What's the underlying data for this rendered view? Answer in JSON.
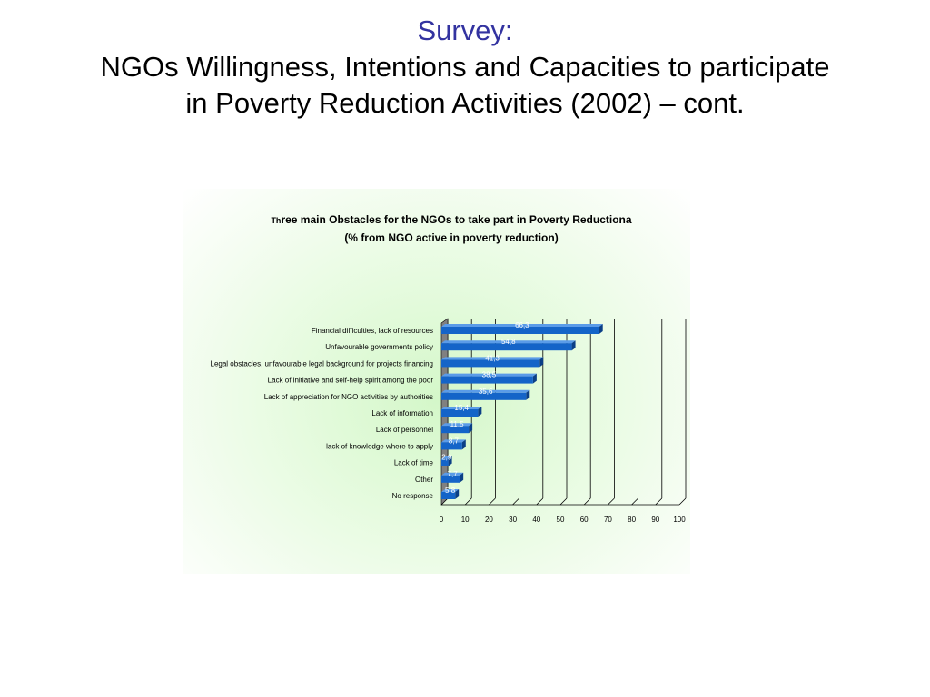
{
  "slide": {
    "title_line1": "Survey:",
    "title_line2": "NGOs Willingness, Intentions and Capacities to participate",
    "title_line3": "in Poverty Reduction Activities (2002) – cont."
  },
  "colors": {
    "title_blue": "#3333a0",
    "bar_fill": "#1464c8",
    "bar_top": "#5a9be8",
    "bar_side": "#0b3f86",
    "floor": "#808080"
  },
  "chart_data": {
    "type": "bar",
    "orientation": "horizontal",
    "title_prefix": "Th",
    "title_rest": "ree main Obstacles for the NGOs to take part in Poverty Reductiona",
    "subtitle": "(% from NGO active in poverty reduction)",
    "categories": [
      "Financial difficulties, lack of resources",
      "Unfavourable governments policy",
      "Legal obstacles, unfavourable legal background for projects financing",
      "Lack of initiative and self-help spirit among the poor",
      "Lack of appreciation for NGO activities by authorities",
      "Lack of information",
      "Lack of personnel",
      "lack of knowledge where to apply",
      "Lack of time",
      "Other",
      "No response"
    ],
    "values": [
      66.3,
      54.8,
      41.3,
      38.5,
      35.6,
      15.4,
      11.5,
      8.7,
      2.9,
      7.7,
      5.8
    ],
    "value_labels": [
      "66,3",
      "54,8",
      "41,3",
      "38,5",
      "35,6",
      "15,4",
      "11,5",
      "8,7",
      "2,9",
      "7,7",
      "5,8"
    ],
    "xlim": [
      0,
      100
    ],
    "xticks": [
      0,
      10,
      20,
      30,
      40,
      50,
      60,
      70,
      80,
      90,
      100
    ],
    "grid": true,
    "legend": "none"
  }
}
